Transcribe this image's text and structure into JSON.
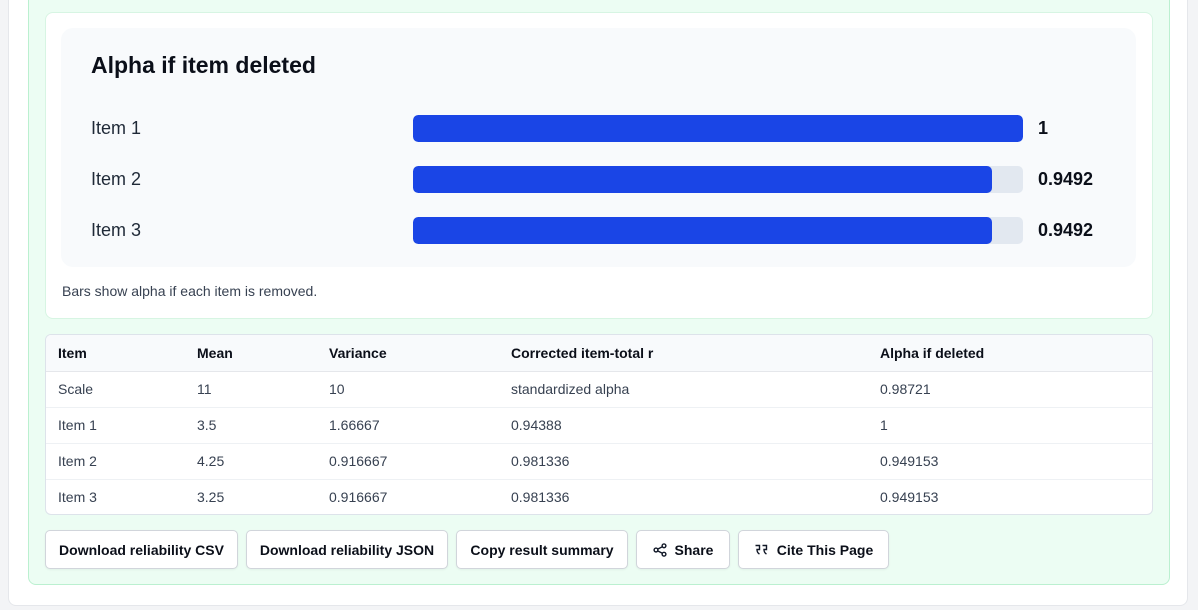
{
  "chart_data": {
    "type": "bar",
    "orientation": "horizontal",
    "title": "Alpha if item deleted",
    "categories": [
      "Item 1",
      "Item 2",
      "Item 3"
    ],
    "values": [
      1,
      0.9492,
      0.9492
    ],
    "value_labels": [
      "1",
      "0.9492",
      "0.9492"
    ],
    "xlim": [
      0,
      1
    ],
    "bar_color": "#1a45e6",
    "track_color": "#e2e8f0",
    "caption": "Bars show alpha if each item is removed."
  },
  "table": {
    "headers": [
      "Item",
      "Mean",
      "Variance",
      "Corrected item-total r",
      "Alpha if deleted"
    ],
    "rows": [
      [
        "Scale",
        "11",
        "10",
        "standardized alpha",
        "0.98721"
      ],
      [
        "Item 1",
        "3.5",
        "1.66667",
        "0.94388",
        "1"
      ],
      [
        "Item 2",
        "4.25",
        "0.916667",
        "0.981336",
        "0.949153"
      ],
      [
        "Item 3",
        "3.25",
        "0.916667",
        "0.981336",
        "0.949153"
      ]
    ]
  },
  "actions": {
    "download_csv": "Download reliability CSV",
    "download_json": "Download reliability JSON",
    "copy_summary": "Copy result summary",
    "share": "Share",
    "share_icon": "share-icon",
    "cite": "Cite This Page",
    "cite_icon": "quote-icon"
  }
}
